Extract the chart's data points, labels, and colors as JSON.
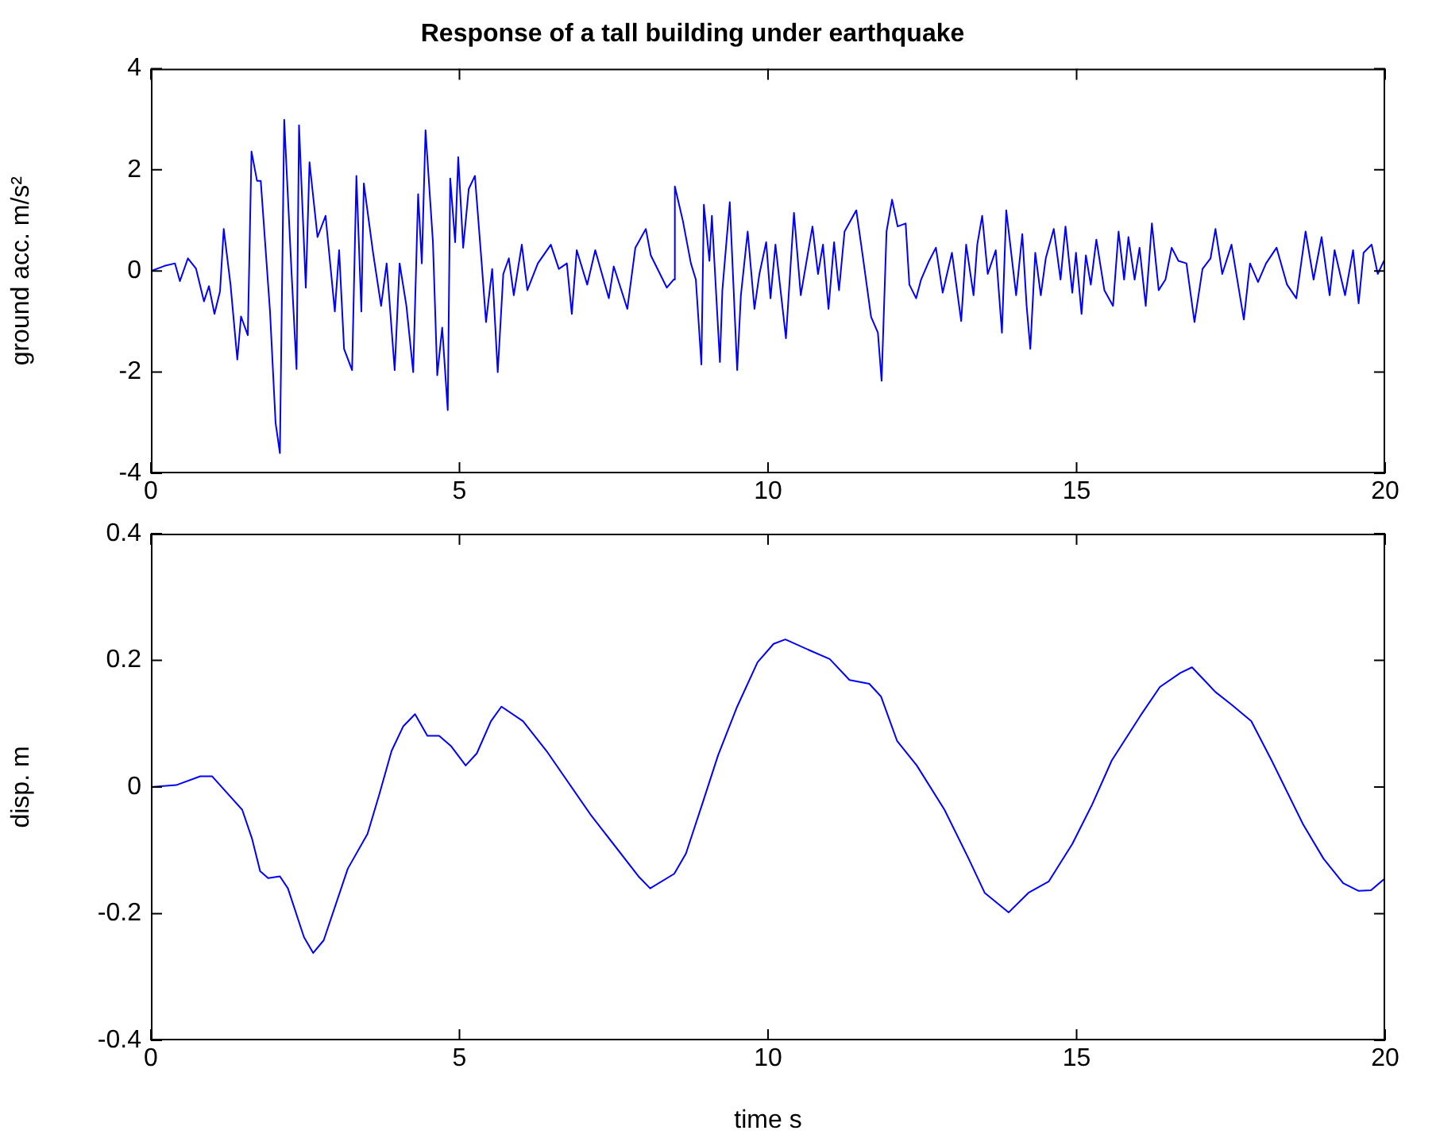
{
  "chart_data": [
    {
      "type": "line",
      "title": "Response of a tall building under earthquake",
      "ylabel": "ground acc. m/s²",
      "color": "#0000ff",
      "xlim": [
        0,
        20
      ],
      "xticks": [
        0,
        5,
        10,
        15,
        20
      ],
      "ylim": [
        -4,
        4
      ],
      "yticks": [
        -4,
        -2,
        0,
        2,
        4
      ],
      "x": [
        0,
        0.22,
        0.39,
        0.47,
        0.6,
        0.73,
        0.86,
        0.94,
        1.03,
        1.12,
        1.18,
        1.29,
        1.4,
        1.46,
        1.57,
        1.63,
        1.72,
        1.78,
        1.93,
        2.02,
        2.09,
        2.16,
        2.28,
        2.36,
        2.4,
        2.51,
        2.57,
        2.7,
        2.83,
        2.98,
        3.05,
        3.13,
        3.26,
        3.33,
        3.41,
        3.45,
        3.6,
        3.73,
        3.82,
        3.95,
        4.03,
        4.14,
        4.25,
        4.33,
        4.39,
        4.45,
        4.57,
        4.64,
        4.72,
        4.81,
        4.85,
        4.93,
        4.98,
        5.06,
        5.15,
        5.25,
        5.36,
        5.43,
        5.53,
        5.62,
        5.71,
        5.8,
        5.88,
        6.01,
        6.1,
        6.27,
        6.48,
        6.61,
        6.74,
        6.82,
        6.9,
        7.07,
        7.2,
        7.42,
        7.5,
        7.72,
        7.85,
        8.02,
        8.1,
        8.36,
        8.47,
        8.49,
        8.62,
        8.75,
        8.83,
        8.92,
        8.96,
        9.05,
        9.09,
        9.22,
        9.26,
        9.38,
        9.5,
        9.56,
        9.67,
        9.78,
        9.86,
        9.97,
        10.04,
        10.12,
        10.29,
        10.42,
        10.53,
        10.72,
        10.81,
        10.89,
        10.98,
        11.07,
        11.15,
        11.24,
        11.43,
        11.54,
        11.67,
        11.78,
        11.84,
        11.92,
        12.01,
        12.1,
        12.23,
        12.29,
        12.4,
        12.48,
        12.61,
        12.72,
        12.83,
        12.98,
        13.13,
        13.21,
        13.33,
        13.39,
        13.47,
        13.56,
        13.69,
        13.79,
        13.86,
        14.02,
        14.12,
        14.19,
        14.25,
        14.33,
        14.42,
        14.5,
        14.63,
        14.74,
        14.82,
        14.93,
        14.99,
        15.08,
        15.15,
        15.23,
        15.32,
        15.45,
        15.59,
        15.68,
        15.77,
        15.84,
        15.94,
        16.02,
        16.12,
        16.22,
        16.33,
        16.44,
        16.54,
        16.65,
        16.78,
        16.91,
        17.04,
        17.17,
        17.25,
        17.36,
        17.51,
        17.71,
        17.81,
        17.94,
        18.07,
        18.24,
        18.41,
        18.56,
        18.71,
        18.84,
        18.97,
        19.1,
        19.18,
        19.35,
        19.48,
        19.57,
        19.65,
        19.78,
        19.88,
        20
      ],
      "values": [
        0,
        0.1,
        0.15,
        -0.2,
        0.25,
        0.05,
        -0.6,
        -0.3,
        -0.85,
        -0.4,
        0.83,
        -0.27,
        -1.75,
        -0.9,
        -1.27,
        2.36,
        1.78,
        1.78,
        -0.8,
        -3,
        -3.6,
        2.99,
        -0.06,
        -1.94,
        2.88,
        -0.33,
        2.15,
        0.67,
        1.09,
        -0.8,
        0.41,
        -1.54,
        -1.96,
        1.88,
        -0.8,
        1.73,
        0.36,
        -0.69,
        0.15,
        -1.96,
        0.15,
        -0.69,
        -2,
        1.52,
        0.15,
        2.78,
        0.57,
        -2.06,
        -1.12,
        -2.75,
        1.83,
        0.57,
        2.25,
        0.46,
        1.62,
        1.88,
        0.15,
        -1.01,
        0.04,
        -2,
        -0.06,
        0.25,
        -0.48,
        0.52,
        -0.38,
        0.15,
        0.52,
        0.04,
        0.15,
        -0.85,
        0.41,
        -0.27,
        0.41,
        -0.54,
        0.09,
        -0.75,
        0.46,
        0.83,
        0.31,
        -0.33,
        -0.17,
        1.67,
        0.99,
        0.15,
        -0.17,
        -1.85,
        1.31,
        0.2,
        1.09,
        -1.8,
        -0.38,
        1.36,
        -1.96,
        -0.48,
        0.78,
        -0.75,
        -0.06,
        0.57,
        -0.54,
        0.52,
        -1.33,
        1.15,
        -0.48,
        0.88,
        -0.06,
        0.52,
        -0.75,
        0.57,
        -0.38,
        0.78,
        1.2,
        0.25,
        -0.91,
        -1.22,
        -2.17,
        0.78,
        1.41,
        0.88,
        0.94,
        -0.27,
        -0.54,
        -0.17,
        0.2,
        0.46,
        -0.43,
        0.36,
        -0.99,
        0.52,
        -0.48,
        0.52,
        1.09,
        -0.06,
        0.41,
        -1.22,
        1.2,
        -0.48,
        0.73,
        -0.69,
        -1.54,
        0.36,
        -0.48,
        0.25,
        0.83,
        -0.17,
        0.88,
        -0.43,
        0.36,
        -0.85,
        0.31,
        -0.27,
        0.62,
        -0.38,
        -0.69,
        0.78,
        -0.17,
        0.67,
        -0.17,
        0.46,
        -0.69,
        0.94,
        -0.38,
        -0.17,
        0.46,
        0.2,
        0.15,
        -1.01,
        0.04,
        0.25,
        0.83,
        -0.06,
        0.52,
        -0.96,
        0.15,
        -0.22,
        0.15,
        0.46,
        -0.27,
        -0.54,
        0.78,
        -0.17,
        0.67,
        -0.48,
        0.41,
        -0.48,
        0.41,
        -0.64,
        0.36,
        0.52,
        -0.06,
        0.25
      ]
    },
    {
      "type": "line",
      "xlabel": "time s",
      "ylabel": "disp. m",
      "color": "#0000ff",
      "xlim": [
        0,
        20
      ],
      "xticks": [
        0,
        5,
        10,
        15,
        20
      ],
      "ylim": [
        -0.4,
        0.4
      ],
      "yticks": [
        -0.4,
        -0.2,
        0,
        0.2,
        0.4
      ],
      "x": [
        0,
        0.41,
        0.8,
        0.99,
        1.48,
        1.64,
        1.77,
        1.9,
        2.09,
        2.22,
        2.48,
        2.63,
        2.8,
        3.19,
        3.51,
        3.7,
        3.9,
        4.09,
        4.28,
        4.48,
        4.67,
        4.86,
        5.1,
        5.28,
        5.51,
        5.68,
        6.03,
        6.41,
        7.12,
        7.9,
        8.09,
        8.48,
        8.67,
        8.93,
        9.19,
        9.5,
        9.83,
        10.09,
        10.28,
        10.67,
        11,
        11.32,
        11.64,
        11.83,
        12.09,
        12.41,
        12.86,
        13.25,
        13.51,
        13.9,
        14.22,
        14.55,
        14.93,
        15.25,
        15.57,
        16.03,
        16.35,
        16.68,
        16.87,
        17.25,
        17.51,
        17.83,
        18.16,
        18.67,
        19,
        19.32,
        19.57,
        19.77,
        20
      ],
      "values": [
        0,
        0.003,
        0.017,
        0.017,
        -0.036,
        -0.082,
        -0.133,
        -0.144,
        -0.141,
        -0.16,
        -0.237,
        -0.262,
        -0.242,
        -0.129,
        -0.074,
        -0.012,
        0.057,
        0.096,
        0.115,
        0.081,
        0.081,
        0.065,
        0.034,
        0.053,
        0.104,
        0.127,
        0.104,
        0.057,
        -0.043,
        -0.141,
        -0.16,
        -0.137,
        -0.105,
        -0.028,
        0.05,
        0.127,
        0.197,
        0.226,
        0.233,
        0.216,
        0.202,
        0.169,
        0.163,
        0.143,
        0.073,
        0.034,
        -0.036,
        -0.113,
        -0.167,
        -0.198,
        -0.167,
        -0.149,
        -0.09,
        -0.028,
        0.042,
        0.112,
        0.158,
        0.18,
        0.189,
        0.15,
        0.13,
        0.104,
        0.042,
        -0.059,
        -0.113,
        -0.152,
        -0.164,
        -0.163,
        -0.144
      ]
    }
  ]
}
